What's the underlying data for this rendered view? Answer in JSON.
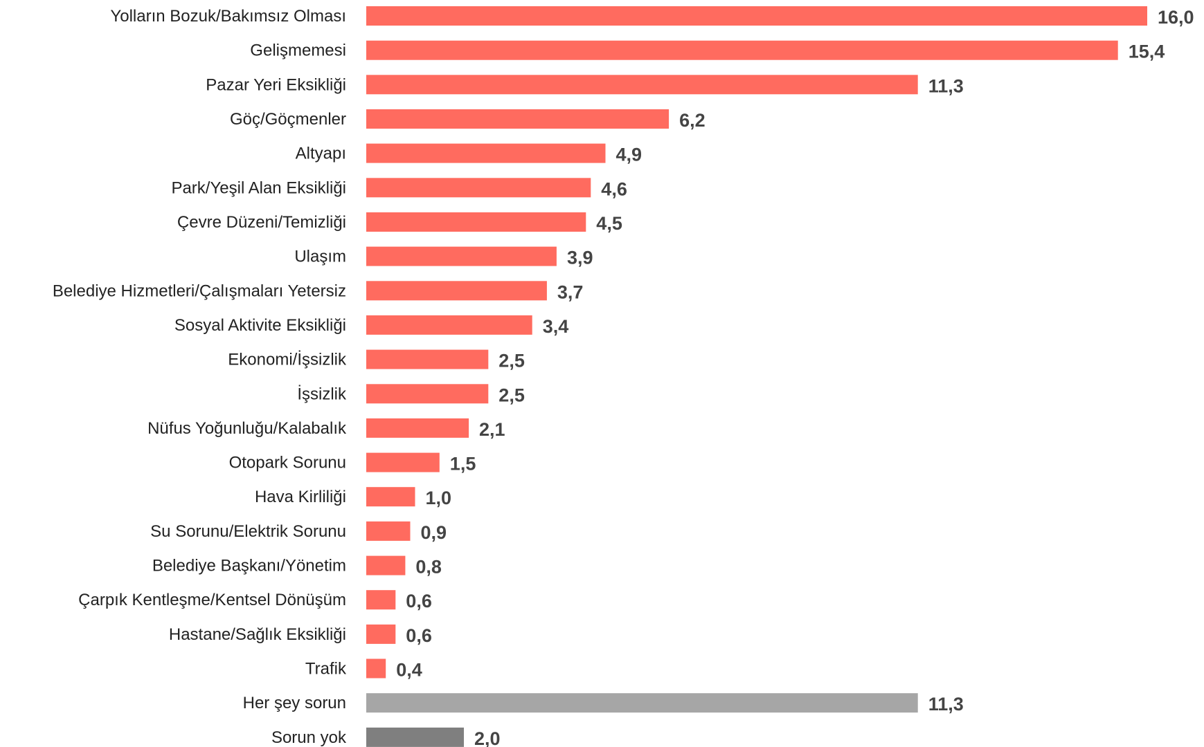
{
  "chart_data": {
    "type": "bar",
    "orientation": "horizontal",
    "title": "",
    "xlabel": "",
    "ylabel": "",
    "grid": false,
    "legend": "none",
    "xlim": [
      0,
      16
    ],
    "categories": [
      "Yolların Bozuk/Bakımsız Olması",
      "Gelişmemesi",
      "Pazar Yeri Eksikliği",
      "Göç/Göçmenler",
      "Altyapı",
      "Park/Yeşil Alan Eksikliği",
      "Çevre Düzeni/Temizliği",
      "Ulaşım",
      "Belediye Hizmetleri/Çalışmaları Yetersiz",
      "Sosyal Aktivite Eksikliği",
      "Ekonomi/İşsizlik",
      "İşsizlik",
      "Nüfus Yoğunluğu/Kalabalık",
      "Otopark Sorunu",
      "Hava Kirliliği",
      "Su Sorunu/Elektrik Sorunu",
      "Belediye Başkanı/Yönetim",
      "Çarpık Kentleşme/Kentsel Dönüşüm",
      "Hastane/Sağlık Eksikliği",
      "Trafik",
      "Her şey sorun",
      "Sorun yok"
    ],
    "values": [
      16.0,
      15.4,
      11.3,
      6.2,
      4.9,
      4.6,
      4.5,
      3.9,
      3.7,
      3.4,
      2.5,
      2.5,
      2.1,
      1.5,
      1.0,
      0.9,
      0.8,
      0.6,
      0.6,
      0.4,
      11.3,
      2.0
    ],
    "value_labels": [
      "16,0",
      "15,4",
      "11,3",
      "6,2",
      "4,9",
      "4,6",
      "4,5",
      "3,9",
      "3,7",
      "3,4",
      "2,5",
      "2,5",
      "2,1",
      "1,5",
      "1,0",
      "0,9",
      "0,8",
      "0,6",
      "0,6",
      "0,4",
      "11,3",
      "2,0"
    ],
    "bar_colors": [
      "#ff6b5f",
      "#ff6b5f",
      "#ff6b5f",
      "#ff6b5f",
      "#ff6b5f",
      "#ff6b5f",
      "#ff6b5f",
      "#ff6b5f",
      "#ff6b5f",
      "#ff6b5f",
      "#ff6b5f",
      "#ff6b5f",
      "#ff6b5f",
      "#ff6b5f",
      "#ff6b5f",
      "#ff6b5f",
      "#ff6b5f",
      "#ff6b5f",
      "#ff6b5f",
      "#ff6b5f",
      "#a6a6a6",
      "#7f7f7f"
    ]
  }
}
